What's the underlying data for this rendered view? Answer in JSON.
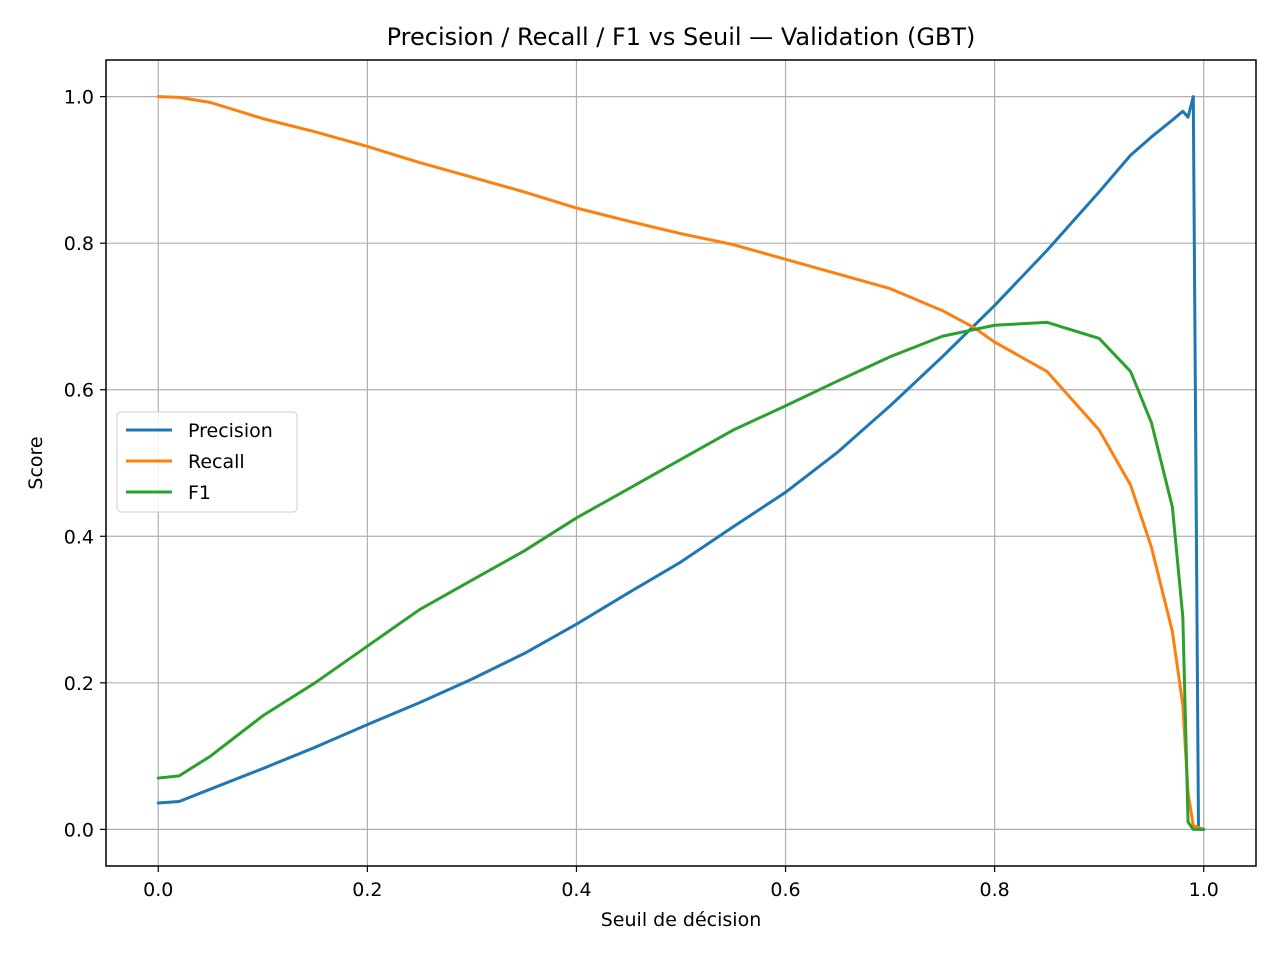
{
  "chart_data": {
    "type": "line",
    "title": "Precision / Recall / F1 vs Seuil — Validation (GBT)",
    "xlabel": "Seuil de décision",
    "ylabel": "Score",
    "xlim": [
      -0.05,
      1.05
    ],
    "ylim": [
      -0.05,
      1.05
    ],
    "xticks": [
      0.0,
      0.2,
      0.4,
      0.6,
      0.8,
      1.0
    ],
    "yticks": [
      0.0,
      0.2,
      0.4,
      0.6,
      0.8,
      1.0
    ],
    "xtick_labels": [
      "0.0",
      "0.2",
      "0.4",
      "0.6",
      "0.8",
      "1.0"
    ],
    "ytick_labels": [
      "0.0",
      "0.2",
      "0.4",
      "0.6",
      "0.8",
      "1.0"
    ],
    "grid": true,
    "legend_position": "center-left",
    "series": [
      {
        "name": "Precision",
        "color": "#1f77b4",
        "points": [
          [
            0.0,
            0.036
          ],
          [
            0.02,
            0.038
          ],
          [
            0.05,
            0.055
          ],
          [
            0.1,
            0.083
          ],
          [
            0.15,
            0.112
          ],
          [
            0.2,
            0.143
          ],
          [
            0.25,
            0.173
          ],
          [
            0.3,
            0.205
          ],
          [
            0.35,
            0.24
          ],
          [
            0.4,
            0.28
          ],
          [
            0.45,
            0.323
          ],
          [
            0.5,
            0.365
          ],
          [
            0.55,
            0.413
          ],
          [
            0.6,
            0.46
          ],
          [
            0.65,
            0.515
          ],
          [
            0.7,
            0.578
          ],
          [
            0.75,
            0.645
          ],
          [
            0.8,
            0.715
          ],
          [
            0.85,
            0.79
          ],
          [
            0.9,
            0.87
          ],
          [
            0.93,
            0.92
          ],
          [
            0.95,
            0.945
          ],
          [
            0.97,
            0.968
          ],
          [
            0.98,
            0.98
          ],
          [
            0.985,
            0.972
          ],
          [
            0.99,
            1.0
          ],
          [
            0.992,
            0.6
          ],
          [
            0.995,
            0.0
          ],
          [
            1.0,
            0.0
          ]
        ]
      },
      {
        "name": "Recall",
        "color": "#ff7f0e",
        "points": [
          [
            0.0,
            1.0
          ],
          [
            0.02,
            0.999
          ],
          [
            0.05,
            0.992
          ],
          [
            0.1,
            0.97
          ],
          [
            0.15,
            0.952
          ],
          [
            0.2,
            0.932
          ],
          [
            0.25,
            0.91
          ],
          [
            0.3,
            0.89
          ],
          [
            0.35,
            0.87
          ],
          [
            0.4,
            0.848
          ],
          [
            0.45,
            0.83
          ],
          [
            0.5,
            0.813
          ],
          [
            0.55,
            0.798
          ],
          [
            0.6,
            0.778
          ],
          [
            0.65,
            0.758
          ],
          [
            0.7,
            0.738
          ],
          [
            0.75,
            0.708
          ],
          [
            0.78,
            0.685
          ],
          [
            0.8,
            0.665
          ],
          [
            0.85,
            0.625
          ],
          [
            0.9,
            0.545
          ],
          [
            0.93,
            0.47
          ],
          [
            0.95,
            0.385
          ],
          [
            0.97,
            0.27
          ],
          [
            0.98,
            0.17
          ],
          [
            0.985,
            0.05
          ],
          [
            0.99,
            0.005
          ],
          [
            1.0,
            0.0
          ]
        ]
      },
      {
        "name": "F1",
        "color": "#2ca02c",
        "points": [
          [
            0.0,
            0.07
          ],
          [
            0.02,
            0.073
          ],
          [
            0.05,
            0.1
          ],
          [
            0.1,
            0.155
          ],
          [
            0.15,
            0.2
          ],
          [
            0.2,
            0.25
          ],
          [
            0.25,
            0.3
          ],
          [
            0.3,
            0.34
          ],
          [
            0.35,
            0.38
          ],
          [
            0.4,
            0.425
          ],
          [
            0.45,
            0.465
          ],
          [
            0.5,
            0.505
          ],
          [
            0.55,
            0.545
          ],
          [
            0.6,
            0.578
          ],
          [
            0.65,
            0.612
          ],
          [
            0.7,
            0.645
          ],
          [
            0.75,
            0.673
          ],
          [
            0.8,
            0.688
          ],
          [
            0.85,
            0.692
          ],
          [
            0.9,
            0.67
          ],
          [
            0.93,
            0.625
          ],
          [
            0.95,
            0.555
          ],
          [
            0.97,
            0.44
          ],
          [
            0.98,
            0.29
          ],
          [
            0.985,
            0.01
          ],
          [
            0.99,
            0.0
          ],
          [
            1.0,
            0.0
          ]
        ]
      }
    ]
  }
}
